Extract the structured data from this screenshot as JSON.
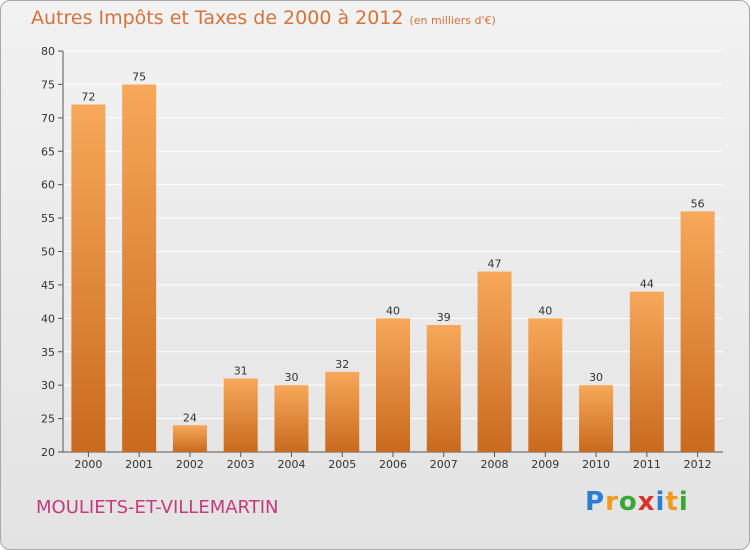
{
  "title": "Autres Impôts et Taxes de 2000 à 2012",
  "unit": "(en milliers d'€)",
  "commune": "MOULIETS-ET-VILLEMARTIN",
  "brand": {
    "letters": [
      "P",
      "r",
      "o",
      "x",
      "i",
      "t",
      "i"
    ],
    "colors": [
      "#2a7fd4",
      "#f29a1f",
      "#3aa63a",
      "#d8332a",
      "#2a7fd4",
      "#f29a1f",
      "#3aa63a"
    ]
  },
  "colors": {
    "bar_top": "#f7a85a",
    "bar_bottom": "#c96a1e",
    "grid": "#ffffff",
    "axis": "#555555"
  },
  "chart_data": {
    "type": "bar",
    "categories": [
      "2000",
      "2001",
      "2002",
      "2003",
      "2004",
      "2005",
      "2006",
      "2007",
      "2008",
      "2009",
      "2010",
      "2011",
      "2012"
    ],
    "values": [
      72,
      75,
      24,
      31,
      30,
      32,
      40,
      39,
      47,
      40,
      30,
      44,
      56
    ],
    "data_labels": [
      "72",
      "75",
      "24",
      "31",
      "30",
      "32",
      "40",
      "39",
      "47",
      "40",
      "30",
      "44",
      "56"
    ],
    "ylim": [
      20,
      80
    ],
    "yticks": [
      20,
      25,
      30,
      35,
      40,
      45,
      50,
      55,
      60,
      65,
      70,
      75,
      80
    ],
    "ytick_labels": [
      "20",
      "25",
      "30",
      "35",
      "40",
      "45",
      "50",
      "55",
      "60",
      "65",
      "70",
      "75",
      "80"
    ],
    "grid": true,
    "legend": "none"
  }
}
